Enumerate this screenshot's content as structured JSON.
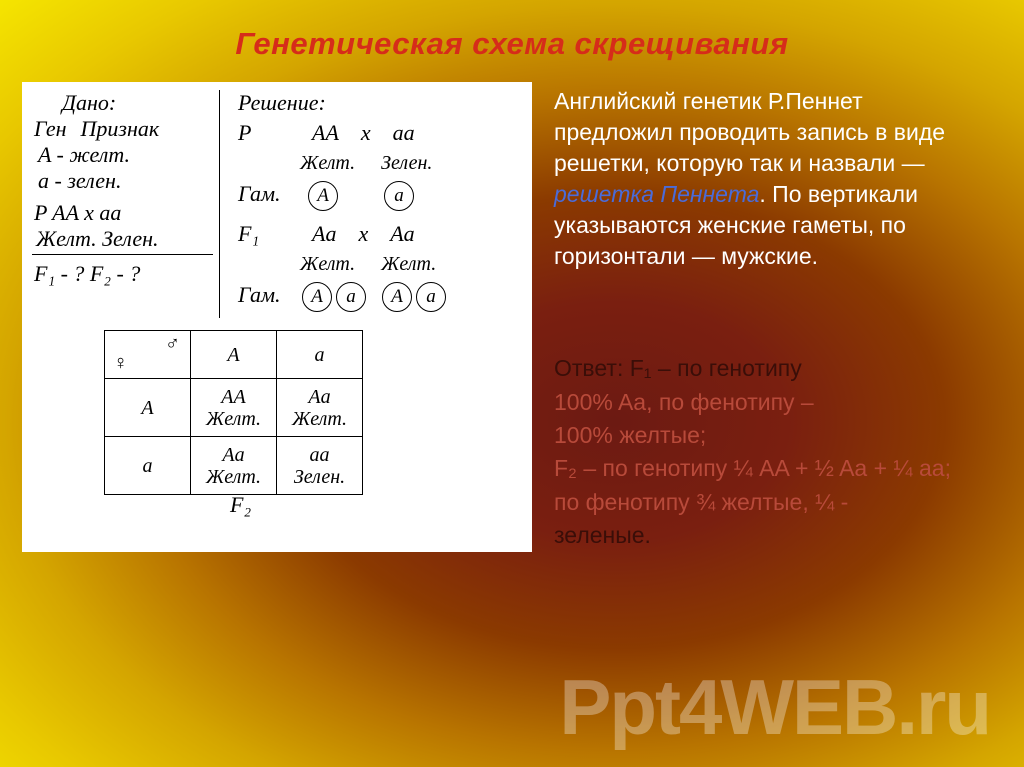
{
  "title": "Генетическая схема скрещивания",
  "given": {
    "header": "Дано:",
    "col1": "Ген",
    "col2": "Признак",
    "allele1": "A  -  желт.",
    "allele2": "a  -  зелен.",
    "parents": "P  AA  x  aa",
    "phenos": "Желт.  Зелен.",
    "question": "F₁ - ?   F₂ - ?"
  },
  "solution": {
    "header": "Решение:",
    "p_label": "P",
    "p_cross": {
      "left": "AA",
      "x": "x",
      "right": "aa"
    },
    "p_pheno": {
      "left": "Желт.",
      "right": "Зелен."
    },
    "gam_label": "Гам.",
    "gam1": [
      "A",
      "a"
    ],
    "f1_label": "F₁",
    "f1_cross": {
      "left": "Aa",
      "x": "x",
      "right": "Aa"
    },
    "f1_pheno": {
      "left": "Желт.",
      "right": "Желт."
    },
    "gam2": [
      "A",
      "a",
      "A",
      "a"
    ],
    "f2_label": "F₂"
  },
  "punnett": {
    "col_headers": [
      "A",
      "a"
    ],
    "row_headers": [
      "A",
      "a"
    ],
    "cells": [
      [
        "AA\nЖелт.",
        "Aa\nЖелт."
      ],
      [
        "Aa\nЖелт.",
        "aa\nЗелен."
      ]
    ]
  },
  "description": {
    "text_before": "Английский генетик Р.Пеннет предложил проводить запись в виде решетки, которую так и назвали — ",
    "term": "решетка Пеннета",
    "text_after": ". По вертикали указываются женские гаметы, по горизонтали — мужские."
  },
  "answer": {
    "line1_dim": "Ответ: F₁ – по генотипу",
    "line2": "100% Aa, по фенотипу –",
    "line3": "100% желтые;",
    "line4": "F₂ – по генотипу ¼ AA + ½ Aa + ¼ aa;",
    "line5": "по фенотипу ¾ желтые, ¼ - ",
    "line6_dim": "зеленые."
  },
  "watermark": "Ppt4WEB.ru",
  "colors": {
    "title": "#d62c1a",
    "term": "#4a6bd9",
    "text_light": "#ffffff",
    "panel_bg": "#ffffff"
  }
}
